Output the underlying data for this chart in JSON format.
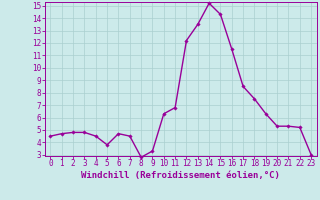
{
  "x": [
    0,
    1,
    2,
    3,
    4,
    5,
    6,
    7,
    8,
    9,
    10,
    11,
    12,
    13,
    14,
    15,
    16,
    17,
    18,
    19,
    20,
    21,
    22,
    23
  ],
  "y": [
    4.5,
    4.7,
    4.8,
    4.8,
    4.5,
    3.8,
    4.7,
    4.5,
    2.8,
    3.3,
    6.3,
    6.8,
    12.2,
    13.5,
    15.2,
    14.3,
    11.5,
    8.5,
    7.5,
    6.3,
    5.3,
    5.3,
    5.2,
    3.0
  ],
  "line_color": "#990099",
  "marker": "D",
  "marker_size": 1.8,
  "background_color": "#cceaea",
  "grid_color": "#aacfcf",
  "xlabel": "Windchill (Refroidissement éolien,°C)",
  "xlabel_color": "#990099",
  "tick_color": "#990099",
  "ylim": [
    3,
    15
  ],
  "xlim": [
    -0.5,
    23.5
  ],
  "yticks": [
    3,
    4,
    5,
    6,
    7,
    8,
    9,
    10,
    11,
    12,
    13,
    14,
    15
  ],
  "xticks": [
    0,
    1,
    2,
    3,
    4,
    5,
    6,
    7,
    8,
    9,
    10,
    11,
    12,
    13,
    14,
    15,
    16,
    17,
    18,
    19,
    20,
    21,
    22,
    23
  ],
  "line_width": 1.0,
  "spine_color": "#990099",
  "tick_fontsize": 5.5,
  "xlabel_fontsize": 6.5
}
